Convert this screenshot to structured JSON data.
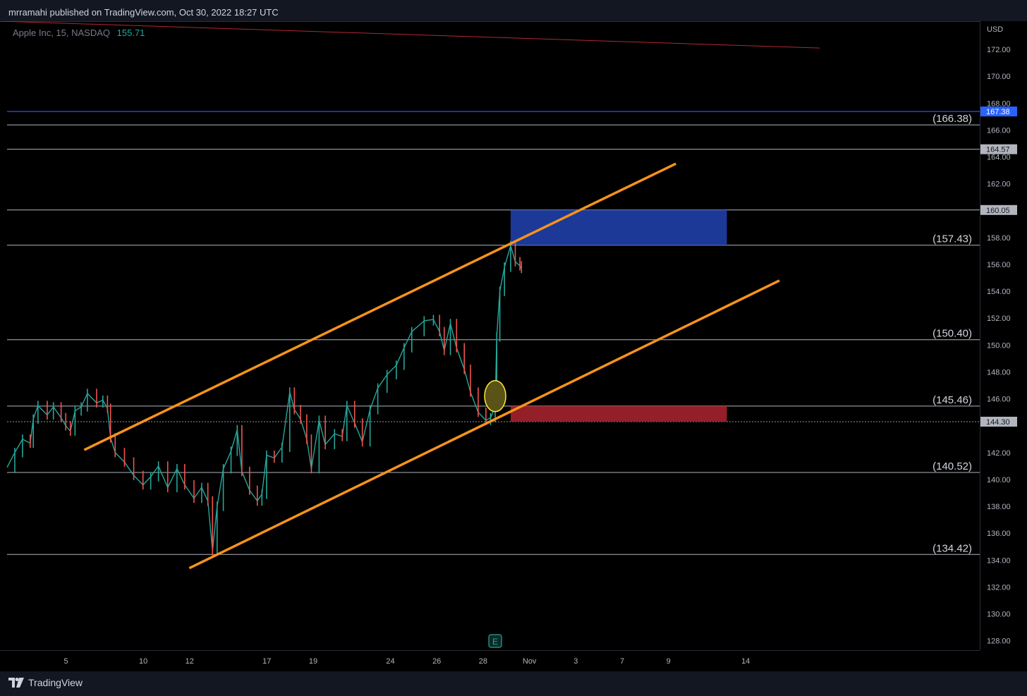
{
  "header": {
    "text": "mrramahi published on TradingView.com, Oct 30, 2022 18:27 UTC"
  },
  "symbol": {
    "name": "Apple Inc, 15, NASDAQ",
    "last": "155.71"
  },
  "footer": {
    "brand": "TradingView"
  },
  "chart_data": {
    "type": "line",
    "title": "",
    "currency": "USD",
    "price_ticks": [
      172,
      170,
      168,
      166,
      164,
      162,
      160,
      158,
      156,
      154,
      152,
      150,
      148,
      146,
      142,
      140,
      138,
      136,
      134,
      132,
      130,
      128
    ],
    "price_tick_labels": [
      "172.00",
      "170.00",
      "168.00",
      "166.00",
      "164.00",
      "162.00",
      "160.00",
      "158.00",
      "156.00",
      "154.00",
      "152.00",
      "150.00",
      "148.00",
      "146.00",
      "142.00",
      "140.00",
      "138.00",
      "136.00",
      "134.00",
      "132.00",
      "130.00",
      "128.00"
    ],
    "ylim": [
      127.3,
      174.1
    ],
    "time_labels": [
      "5",
      "10",
      "12",
      "17",
      "19",
      "24",
      "26",
      "28",
      "Nov",
      "3",
      "7",
      "9",
      "14"
    ],
    "time_label_index": [
      4,
      9,
      12,
      17,
      20,
      25,
      28,
      31,
      34,
      37,
      40,
      43,
      48
    ],
    "horizontal_levels": [
      {
        "value": 166.38,
        "label": "(166.38)"
      },
      {
        "value": 164.57
      },
      {
        "value": 160.05
      },
      {
        "value": 157.43,
        "label": "(157.43)"
      },
      {
        "value": 150.4,
        "label": "(150.40)"
      },
      {
        "value": 145.46,
        "label": "(145.46)"
      },
      {
        "value": 144.3
      },
      {
        "value": 140.52,
        "label": "(140.52)"
      },
      {
        "value": 134.42,
        "label": "(134.42)"
      }
    ],
    "badges": [
      {
        "value": 167.38,
        "text": "167.38",
        "bg": "#2962ff",
        "fg": "#ffffff"
      },
      {
        "value": 164.57,
        "text": "164.57",
        "bg": "#b2b5be",
        "fg": "#131722"
      },
      {
        "value": 160.05,
        "text": "160.05",
        "bg": "#b2b5be",
        "fg": "#131722"
      },
      {
        "value": 144.3,
        "text": "144.30",
        "bg": "#b2b5be",
        "fg": "#131722"
      }
    ],
    "blue_line": {
      "value": 167.38,
      "color": "#2962ff"
    },
    "red_trendline": {
      "from": [
        0,
        174.1
      ],
      "to": [
        52.6,
        172.1
      ],
      "color": "#b22833"
    },
    "channel_upper": {
      "from": [
        5,
        142.2
      ],
      "to": [
        43.3,
        163.5
      ],
      "color": "#f7931a"
    },
    "channel_lower": {
      "from": [
        11.8,
        133.4
      ],
      "to": [
        50,
        154.8
      ],
      "color": "#f7931a"
    },
    "zones": [
      {
        "x_from": 32.6,
        "x_to": 46.6,
        "y_from": 157.43,
        "y_to": 160.05,
        "color": "#1f3fa8"
      },
      {
        "x_from": 32.6,
        "x_to": 46.6,
        "y_from": 144.3,
        "y_to": 145.46,
        "color": "#a3222d"
      }
    ],
    "ellipse": {
      "x": 31.6,
      "y": 146.2,
      "color": "#ffeb3b"
    },
    "earnings_marker": {
      "x": 31.6,
      "text": "E"
    },
    "price_path": [
      [
        0,
        140.9
      ],
      [
        0.5,
        142.0
      ],
      [
        1.0,
        143.0
      ],
      [
        1.5,
        142.7
      ],
      [
        1.7,
        144.5
      ],
      [
        2.0,
        145.5
      ],
      [
        2.6,
        144.8
      ],
      [
        3.0,
        145.4
      ],
      [
        3.5,
        144.6
      ],
      [
        3.8,
        144.0
      ],
      [
        4.1,
        143.6
      ],
      [
        4.4,
        145.1
      ],
      [
        4.8,
        145.4
      ],
      [
        5.2,
        146.4
      ],
      [
        5.8,
        145.7
      ],
      [
        6.2,
        145.9
      ],
      [
        6.5,
        145.3
      ],
      [
        6.7,
        143.1
      ],
      [
        7.0,
        142.0
      ],
      [
        7.6,
        141.3
      ],
      [
        8.2,
        140.3
      ],
      [
        8.8,
        139.6
      ],
      [
        9.3,
        140.2
      ],
      [
        9.8,
        141.0
      ],
      [
        10.4,
        139.4
      ],
      [
        11.0,
        140.8
      ],
      [
        11.5,
        139.6
      ],
      [
        12.1,
        138.6
      ],
      [
        12.6,
        139.4
      ],
      [
        13.0,
        138.4
      ],
      [
        13.3,
        134.7
      ],
      [
        13.6,
        138.0
      ],
      [
        14.0,
        140.8
      ],
      [
        14.5,
        142.1
      ],
      [
        14.9,
        143.7
      ],
      [
        15.2,
        140.6
      ],
      [
        15.7,
        139.2
      ],
      [
        16.2,
        138.4
      ],
      [
        16.5,
        138.9
      ],
      [
        16.8,
        141.8
      ],
      [
        17.3,
        141.6
      ],
      [
        17.8,
        142.4
      ],
      [
        18.3,
        146.5
      ],
      [
        18.6,
        145.2
      ],
      [
        19.0,
        144.5
      ],
      [
        19.4,
        143.0
      ],
      [
        19.7,
        140.8
      ],
      [
        20.2,
        144.4
      ],
      [
        20.6,
        142.6
      ],
      [
        21.2,
        143.4
      ],
      [
        21.7,
        143.2
      ],
      [
        22.0,
        145.5
      ],
      [
        22.5,
        144.2
      ],
      [
        23.0,
        142.8
      ],
      [
        23.5,
        145.2
      ],
      [
        24.0,
        146.8
      ],
      [
        24.6,
        147.8
      ],
      [
        25.2,
        148.5
      ],
      [
        25.7,
        149.8
      ],
      [
        26.2,
        151.0
      ],
      [
        27.0,
        151.8
      ],
      [
        27.6,
        151.9
      ],
      [
        28.0,
        151.0
      ],
      [
        28.3,
        149.6
      ],
      [
        28.7,
        151.6
      ],
      [
        29.1,
        149.8
      ],
      [
        29.6,
        148.2
      ],
      [
        30.0,
        146.5
      ],
      [
        30.5,
        145.0
      ],
      [
        31.0,
        144.4
      ],
      [
        31.3,
        144.6
      ],
      [
        31.6,
        145.4
      ],
      [
        31.7,
        150.6
      ],
      [
        31.9,
        154.0
      ],
      [
        32.2,
        155.8
      ],
      [
        32.6,
        157.4
      ],
      [
        32.9,
        156.2
      ],
      [
        33.2,
        155.9
      ],
      [
        33.3,
        155.7
      ]
    ]
  }
}
